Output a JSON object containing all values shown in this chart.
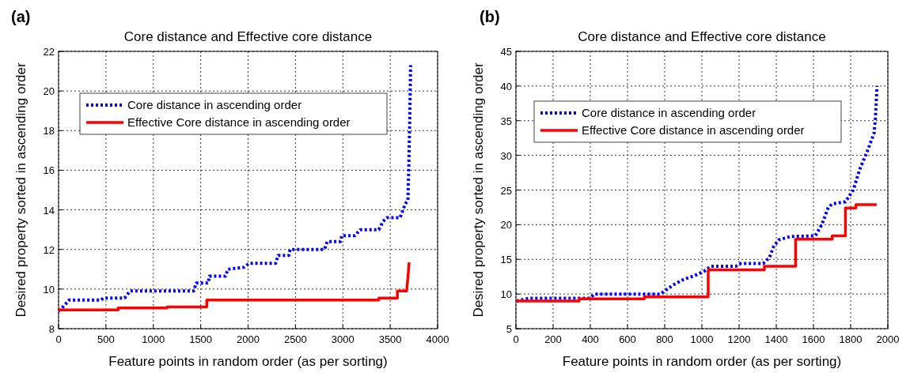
{
  "chart_data": [
    {
      "type": "line",
      "title": "Core distance and Effective core distance",
      "xlabel": "Feature points in random order (as per sorting)",
      "ylabel": "Desired property sorted in ascending order",
      "annotations": [
        "(a)"
      ],
      "xlim": [
        0,
        4000
      ],
      "xticks": [
        0,
        500,
        1000,
        1500,
        2000,
        2500,
        3000,
        3500,
        4000
      ],
      "ylim": [
        8,
        22
      ],
      "yticks": [
        8,
        10,
        12,
        14,
        16,
        18,
        20,
        22
      ],
      "grid": true,
      "legend": "top left",
      "series": [
        {
          "name": "Core distance in ascending order",
          "color": "#0000ff",
          "line_style": "dotted",
          "x": [
            0,
            28,
            112,
            447,
            475,
            698,
            754,
            1425,
            1453,
            1578,
            1592,
            1760,
            1788,
            1955,
            2011,
            2290,
            2318,
            2430,
            2444,
            2807,
            2835,
            2975,
            2989,
            3128,
            3184,
            3380,
            3422,
            3464,
            3603,
            3659,
            3687,
            3695,
            3706,
            3715
          ],
          "values": [
            8.9,
            9.0,
            9.45,
            9.45,
            9.55,
            9.55,
            9.9,
            9.9,
            10.3,
            10.3,
            10.65,
            10.65,
            11.0,
            11.1,
            11.3,
            11.3,
            11.7,
            11.7,
            12.0,
            12.0,
            12.4,
            12.4,
            12.7,
            12.7,
            13.0,
            13.0,
            13.4,
            13.6,
            13.6,
            14.3,
            14.5,
            16.0,
            18.5,
            21.3
          ]
        },
        {
          "name": "Effective Core distance in ascending order",
          "color": "#ff0000",
          "line_style": "solid",
          "x": [
            0,
            628,
            628,
            1145,
            1145,
            1564,
            1564,
            3380,
            3380,
            3576,
            3576,
            3673,
            3687,
            3700
          ],
          "values": [
            8.95,
            8.95,
            9.05,
            9.05,
            9.1,
            9.1,
            9.45,
            9.45,
            9.55,
            9.55,
            9.9,
            9.9,
            10.6,
            11.35
          ]
        }
      ]
    },
    {
      "type": "line",
      "title": "Core distance and Effective core distance",
      "xlabel": "Feature points in random order (as per sorting)",
      "ylabel": "Desired property sorted in ascending order",
      "annotations": [
        "(b)"
      ],
      "xlim": [
        0,
        2000
      ],
      "xticks": [
        0,
        200,
        400,
        600,
        800,
        1000,
        1200,
        1400,
        1600,
        1800,
        2000
      ],
      "ylim": [
        5,
        45
      ],
      "yticks": [
        5,
        10,
        15,
        20,
        25,
        30,
        35,
        40,
        45
      ],
      "grid": true,
      "legend": "top left",
      "series": [
        {
          "name": "Core distance in ascending order",
          "color": "#0000ff",
          "line_style": "dotted",
          "x": [
            3,
            73,
            396,
            424,
            775,
            803,
            845,
            901,
            957,
            1013,
            1048,
            1182,
            1210,
            1330,
            1364,
            1385,
            1413,
            1477,
            1610,
            1645,
            1680,
            1701,
            1772,
            1814,
            1849,
            1891,
            1926,
            1933,
            1942
          ],
          "values": [
            9.0,
            9.4,
            9.4,
            10.0,
            10.0,
            10.5,
            11.3,
            12.1,
            12.6,
            13.3,
            14.0,
            14.0,
            14.4,
            14.4,
            15.3,
            16.8,
            17.8,
            18.3,
            18.4,
            20.0,
            22.5,
            23.0,
            23.3,
            25.0,
            28.0,
            30.7,
            33.2,
            35.3,
            40.0
          ]
        },
        {
          "name": "Effective Core distance in ascending order",
          "color": "#ff0000",
          "line_style": "solid",
          "x": [
            0,
            340,
            340,
            691,
            691,
            1034,
            1034,
            1336,
            1336,
            1504,
            1504,
            1701,
            1701,
            1772,
            1772,
            1828,
            1828,
            1940
          ],
          "values": [
            9.0,
            9.0,
            9.3,
            9.3,
            9.6,
            9.6,
            13.5,
            13.5,
            14.0,
            14.0,
            17.9,
            17.9,
            18.4,
            18.4,
            22.4,
            22.4,
            22.9,
            22.9
          ]
        }
      ]
    }
  ]
}
